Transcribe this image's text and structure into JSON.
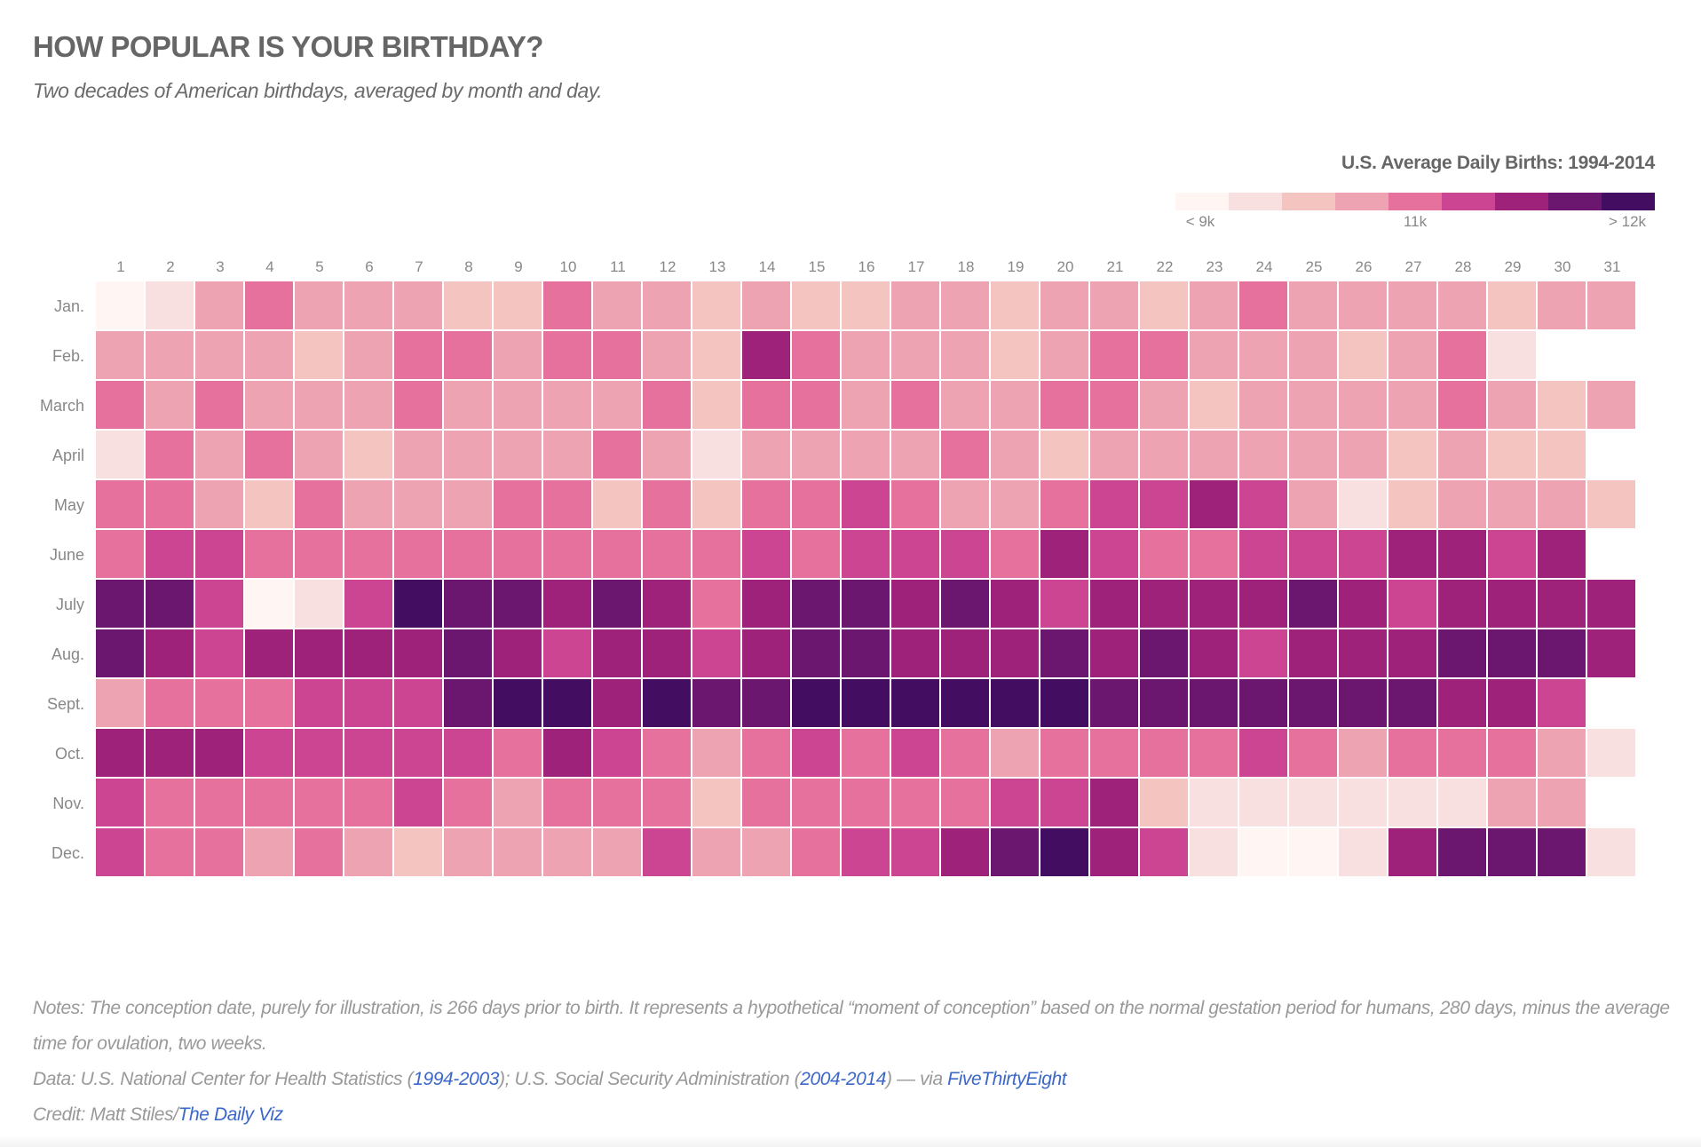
{
  "header": {
    "title": "HOW POPULAR IS YOUR BIRTHDAY?",
    "subtitle": "Two decades of American birthdays, averaged by month and day."
  },
  "legend": {
    "title": "U.S. Average Daily Births: 1994-2014",
    "low_label": "< 9k",
    "mid_label": "11k",
    "high_label": "> 12k",
    "colors": [
      "#fff5f2",
      "#f9e0e0",
      "#f4c4c0",
      "#eda3b2",
      "#e6719c",
      "#cb4592",
      "#9e217a",
      "#6b166f",
      "#430e62"
    ]
  },
  "chart_data": {
    "type": "heatmap",
    "title": "U.S. Average Daily Births: 1994-2014",
    "value_encoding": "color bin 1 (< 9k) to 9 (> 12k), 11k at bin 5",
    "x": [
      "1",
      "2",
      "3",
      "4",
      "5",
      "6",
      "7",
      "8",
      "9",
      "10",
      "11",
      "12",
      "13",
      "14",
      "15",
      "16",
      "17",
      "18",
      "19",
      "20",
      "21",
      "22",
      "23",
      "24",
      "25",
      "26",
      "27",
      "28",
      "29",
      "30",
      "31"
    ],
    "y": [
      "Jan.",
      "Feb.",
      "March",
      "April",
      "May",
      "June",
      "July",
      "Aug.",
      "Sept.",
      "Oct.",
      "Nov.",
      "Dec."
    ],
    "values": [
      [
        1,
        2,
        4,
        5,
        4,
        4,
        4,
        3,
        3,
        5,
        4,
        4,
        3,
        4,
        3,
        3,
        4,
        4,
        3,
        4,
        4,
        3,
        4,
        5,
        4,
        4,
        4,
        4,
        3,
        4,
        4
      ],
      [
        4,
        4,
        4,
        4,
        3,
        4,
        5,
        5,
        4,
        5,
        5,
        4,
        3,
        7,
        5,
        4,
        4,
        4,
        3,
        4,
        5,
        5,
        4,
        4,
        4,
        3,
        4,
        5,
        2
      ],
      [
        5,
        4,
        5,
        4,
        4,
        4,
        5,
        4,
        4,
        4,
        4,
        5,
        3,
        5,
        5,
        4,
        5,
        4,
        4,
        5,
        5,
        4,
        3,
        4,
        4,
        4,
        4,
        5,
        4,
        3,
        4
      ],
      [
        2,
        5,
        4,
        5,
        4,
        3,
        4,
        4,
        4,
        4,
        5,
        4,
        2,
        4,
        4,
        4,
        4,
        5,
        4,
        3,
        4,
        4,
        4,
        4,
        4,
        4,
        3,
        4,
        3,
        3
      ],
      [
        5,
        5,
        4,
        3,
        5,
        4,
        4,
        4,
        5,
        5,
        3,
        5,
        3,
        5,
        5,
        6,
        5,
        4,
        4,
        5,
        6,
        6,
        7,
        6,
        4,
        2,
        3,
        4,
        4,
        4,
        3
      ],
      [
        5,
        6,
        6,
        5,
        5,
        5,
        5,
        5,
        5,
        5,
        5,
        5,
        5,
        6,
        5,
        6,
        6,
        6,
        5,
        7,
        6,
        5,
        5,
        6,
        6,
        6,
        7,
        7,
        6,
        7
      ],
      [
        8,
        8,
        6,
        1,
        2,
        6,
        9,
        8,
        8,
        7,
        8,
        7,
        5,
        7,
        8,
        8,
        7,
        8,
        7,
        6,
        7,
        7,
        7,
        7,
        8,
        7,
        6,
        7,
        7,
        7,
        7
      ],
      [
        8,
        7,
        6,
        7,
        7,
        7,
        7,
        8,
        7,
        6,
        7,
        7,
        6,
        7,
        8,
        8,
        7,
        7,
        7,
        8,
        7,
        8,
        7,
        6,
        7,
        7,
        7,
        8,
        8,
        8,
        7
      ],
      [
        4,
        5,
        5,
        5,
        6,
        6,
        6,
        8,
        9,
        9,
        7,
        9,
        8,
        8,
        9,
        9,
        9,
        9,
        9,
        9,
        8,
        8,
        8,
        8,
        8,
        8,
        8,
        7,
        7,
        6
      ],
      [
        7,
        7,
        7,
        6,
        6,
        6,
        6,
        6,
        5,
        7,
        6,
        5,
        4,
        5,
        6,
        5,
        6,
        5,
        4,
        5,
        5,
        5,
        5,
        6,
        5,
        4,
        5,
        5,
        5,
        4,
        2
      ],
      [
        6,
        5,
        5,
        5,
        5,
        5,
        6,
        5,
        4,
        5,
        5,
        5,
        3,
        5,
        5,
        5,
        5,
        5,
        6,
        6,
        7,
        3,
        2,
        2,
        2,
        2,
        2,
        2,
        4,
        4
      ],
      [
        6,
        5,
        5,
        4,
        5,
        4,
        3,
        4,
        4,
        4,
        4,
        6,
        4,
        4,
        5,
        6,
        6,
        7,
        8,
        9,
        7,
        6,
        2,
        1,
        1,
        2,
        7,
        8,
        8,
        8,
        2
      ]
    ],
    "grid": false,
    "legend_placement": "top-right"
  },
  "notes": {
    "notes_text": "Notes: The conception date, purely for illustration, is 266 days prior to birth. It represents a hypothetical “moment of conception” based on the normal gestation period for humans, 280 days, minus the average time for ovulation, two weeks.",
    "data_prefix": "Data: U.S. National Center for Health Statistics (",
    "data_link1": "1994-2003",
    "data_mid": "); U.S. Social Security Administration (",
    "data_link2": "2004-2014",
    "data_mid2": ") — via ",
    "data_link3": "FiveThirtyEight",
    "credit_prefix": "Credit: Matt Stiles/",
    "credit_link": "The Daily Viz"
  }
}
